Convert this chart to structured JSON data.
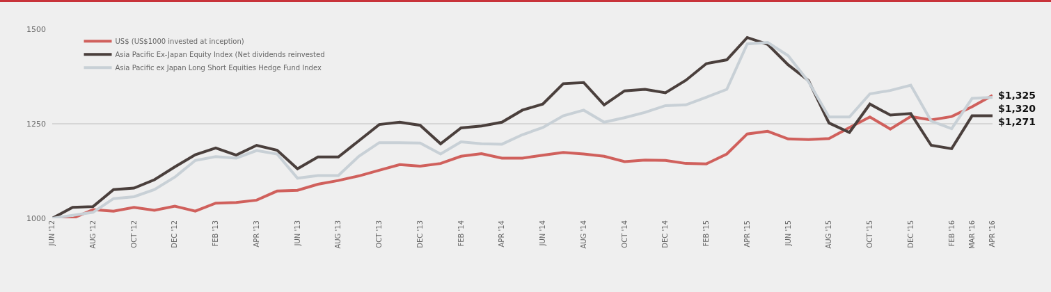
{
  "chart_data": {
    "type": "line",
    "categories": [
      "JUN '12",
      null,
      "AUG '12",
      null,
      "OCT '12",
      null,
      "DEC '12",
      null,
      "FEB '13",
      null,
      "APR '13",
      null,
      "JUN '13",
      null,
      "AUG '13",
      null,
      "OCT '13",
      null,
      "DEC '13",
      null,
      "FEB '14",
      null,
      "APR '14",
      null,
      "JUN '14",
      null,
      "AUG '14",
      null,
      "OCT '14",
      null,
      "DEC '14",
      null,
      "FEB '15",
      null,
      "APR '15",
      null,
      "JUN '15",
      null,
      "AUG '15",
      null,
      "OCT '15",
      null,
      "DEC '15",
      null,
      "FEB '16",
      "MAR '16",
      "APR '16"
    ],
    "series": [
      {
        "name": "US$ (US$1000 invested at inception)",
        "color": "#d0605c",
        "values": [
          1000,
          1000,
          1023,
          1019,
          1029,
          1021,
          1032,
          1019,
          1040,
          1042,
          1048,
          1072,
          1074,
          1090,
          1100,
          1112,
          1127,
          1142,
          1138,
          1145,
          1164,
          1171,
          1159,
          1159,
          1167,
          1174,
          1170,
          1164,
          1150,
          1154,
          1153,
          1145,
          1144,
          1170,
          1223,
          1230,
          1210,
          1208,
          1211,
          1240,
          1268,
          1236,
          1269,
          1260,
          1269,
          1295,
          1325
        ],
        "value_labels": [
          null,
          null,
          null,
          null,
          null,
          null,
          null,
          null,
          null,
          null,
          null,
          null,
          null,
          null,
          null,
          null,
          null,
          null,
          null,
          null,
          null,
          null,
          null,
          null,
          null,
          null,
          null,
          null,
          null,
          null,
          null,
          null,
          null,
          null,
          null,
          null,
          null,
          null,
          null,
          null,
          null,
          null,
          null,
          null,
          null,
          null,
          "$1,325"
        ]
      },
      {
        "name": "Asia Pacific Ex-Japan Equity Index (Net dividends reinvested",
        "color": "#4a3f3c",
        "values": [
          1000,
          1029,
          1031,
          1076,
          1080,
          1102,
          1136,
          1168,
          1186,
          1167,
          1193,
          1180,
          1131,
          1162,
          1162,
          1205,
          1248,
          1254,
          1246,
          1197,
          1239,
          1244,
          1254,
          1286,
          1302,
          1356,
          1359,
          1300,
          1337,
          1341,
          1332,
          1365,
          1409,
          1419,
          1478,
          1460,
          1406,
          1364,
          1252,
          1227,
          1302,
          1273,
          1277,
          1193,
          1184,
          1271,
          1271
        ],
        "value_labels": [
          null,
          null,
          null,
          null,
          null,
          null,
          null,
          null,
          null,
          null,
          null,
          null,
          null,
          null,
          null,
          null,
          null,
          null,
          null,
          null,
          null,
          null,
          null,
          null,
          null,
          null,
          null,
          null,
          null,
          null,
          null,
          null,
          null,
          null,
          null,
          null,
          null,
          null,
          null,
          null,
          null,
          null,
          null,
          null,
          null,
          null,
          "$1,271"
        ]
      },
      {
        "name": "Asia Pacific ex Japan Long Short Equities Hedge Fund Index",
        "color": "#c8d0d6",
        "values": [
          1000,
          1008,
          1016,
          1052,
          1057,
          1076,
          1109,
          1153,
          1163,
          1159,
          1179,
          1170,
          1106,
          1113,
          1113,
          1164,
          1200,
          1200,
          1199,
          1170,
          1202,
          1197,
          1196,
          1221,
          1240,
          1271,
          1286,
          1254,
          1266,
          1280,
          1298,
          1300,
          1320,
          1341,
          1461,
          1465,
          1430,
          1361,
          1268,
          1268,
          1329,
          1338,
          1352,
          1257,
          1237,
          1317,
          1320
        ],
        "value_labels": [
          null,
          null,
          null,
          null,
          null,
          null,
          null,
          null,
          null,
          null,
          null,
          null,
          null,
          null,
          null,
          null,
          null,
          null,
          null,
          null,
          null,
          null,
          null,
          null,
          null,
          null,
          null,
          null,
          null,
          null,
          null,
          null,
          null,
          null,
          null,
          null,
          null,
          null,
          null,
          null,
          null,
          null,
          null,
          null,
          null,
          null,
          "$1,320"
        ]
      }
    ],
    "ylim": [
      1000,
      1500
    ],
    "yticks": [
      1000,
      1250,
      1500
    ],
    "grid": "y",
    "legend": "top left",
    "marker": "none",
    "line_style": "solid"
  }
}
